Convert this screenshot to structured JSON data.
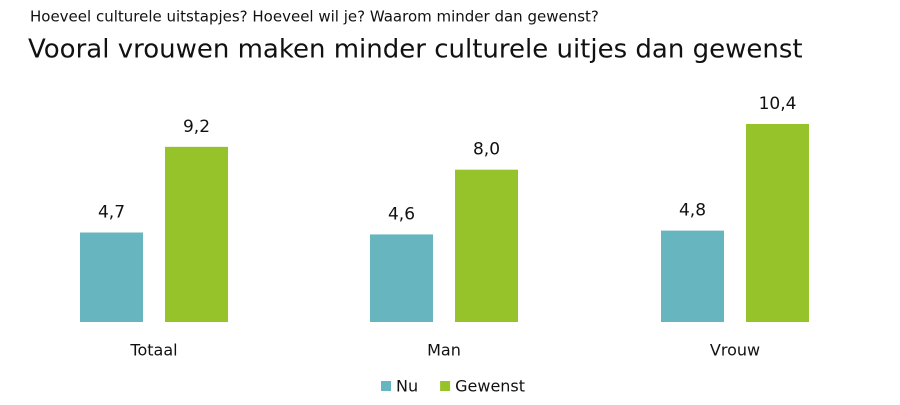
{
  "chart_data": {
    "type": "bar",
    "subtitle": "Hoeveel culturele uitstapjes? Hoeveel wil je? Waarom minder dan gewenst?",
    "title": "Vooral vrouwen maken minder culturele uitjes dan gewenst",
    "categories": [
      "Totaal",
      "Man",
      "Vrouw"
    ],
    "series": [
      {
        "name": "Nu",
        "color": "#66b5bf",
        "values": [
          4.7,
          4.6,
          4.8
        ],
        "value_labels": [
          "4,7",
          "4,6",
          "4,8"
        ]
      },
      {
        "name": "Gewenst",
        "color": "#96c22a",
        "values": [
          9.2,
          8.0,
          10.4
        ],
        "value_labels": [
          "9,2",
          "8,0",
          "10,4"
        ]
      }
    ],
    "legend": "bottom"
  }
}
